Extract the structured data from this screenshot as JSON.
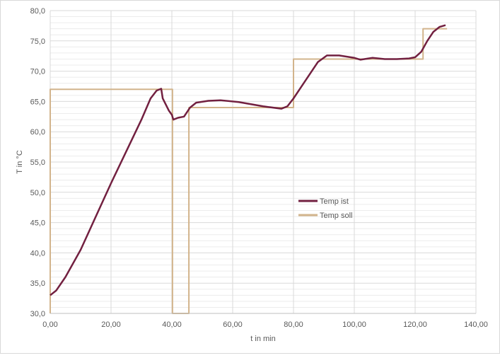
{
  "chart_data": {
    "type": "line",
    "title": "",
    "xlabel": "t in min",
    "ylabel": "T in °C",
    "xlim": [
      0,
      140
    ],
    "ylim": [
      30,
      80
    ],
    "x_ticks": [
      "0,00",
      "20,00",
      "40,00",
      "60,00",
      "80,00",
      "100,00",
      "120,00",
      "140,00"
    ],
    "y_ticks": [
      "30,0",
      "35,0",
      "40,0",
      "45,0",
      "50,0",
      "55,0",
      "60,0",
      "65,0",
      "70,0",
      "75,0",
      "80,0"
    ],
    "grid": {
      "major": true,
      "minor_y_step": 1
    },
    "legend_placement": "center-right",
    "series": [
      {
        "name": "Temp ist",
        "color": "#722040",
        "points": [
          [
            0,
            33
          ],
          [
            2,
            33.8
          ],
          [
            5,
            36
          ],
          [
            10,
            40.5
          ],
          [
            20,
            51.5
          ],
          [
            30,
            62
          ],
          [
            33,
            65.5
          ],
          [
            35,
            66.8
          ],
          [
            36.5,
            67.1
          ],
          [
            37,
            65.5
          ],
          [
            39,
            63.5
          ],
          [
            40,
            62.8
          ],
          [
            40.5,
            62
          ],
          [
            42,
            62.3
          ],
          [
            44,
            62.5
          ],
          [
            46,
            64
          ],
          [
            48,
            64.8
          ],
          [
            52,
            65.1
          ],
          [
            56,
            65.2
          ],
          [
            62,
            64.9
          ],
          [
            70,
            64.2
          ],
          [
            76,
            63.8
          ],
          [
            78,
            64.2
          ],
          [
            80,
            65.5
          ],
          [
            84,
            68.5
          ],
          [
            88,
            71.5
          ],
          [
            91,
            72.6
          ],
          [
            95,
            72.6
          ],
          [
            100,
            72.2
          ],
          [
            102,
            71.9
          ],
          [
            106,
            72.2
          ],
          [
            110,
            72
          ],
          [
            114,
            72
          ],
          [
            118,
            72.1
          ],
          [
            120,
            72.3
          ],
          [
            122,
            73.2
          ],
          [
            124,
            75
          ],
          [
            126,
            76.5
          ],
          [
            128,
            77.3
          ],
          [
            130,
            77.6
          ]
        ]
      },
      {
        "name": "Temp soll",
        "color": "#d2b48c",
        "points": [
          [
            0,
            30
          ],
          [
            0,
            67
          ],
          [
            40.2,
            67
          ],
          [
            40.2,
            30
          ],
          [
            45.6,
            30
          ],
          [
            45.6,
            64
          ],
          [
            80,
            64
          ],
          [
            80,
            72
          ],
          [
            122.6,
            72
          ],
          [
            122.6,
            77
          ],
          [
            130.5,
            77
          ]
        ]
      }
    ]
  }
}
